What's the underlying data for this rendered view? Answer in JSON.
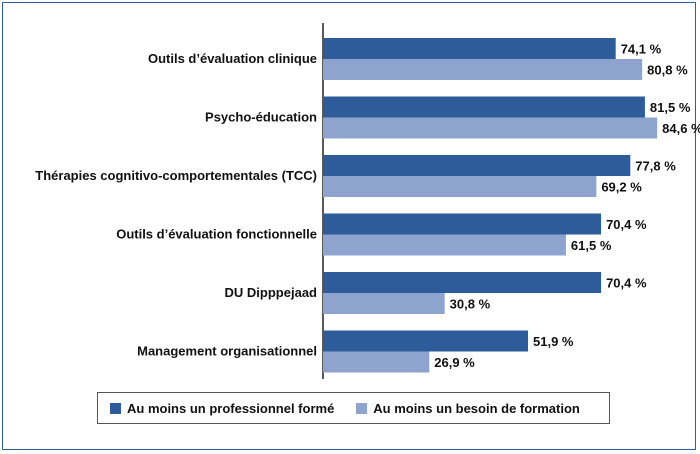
{
  "chart_data": {
    "type": "bar",
    "orientation": "horizontal",
    "title": "",
    "xlabel": "",
    "ylabel": "",
    "xlim": [
      0,
      100
    ],
    "grid": false,
    "legend_position": "bottom",
    "categories": [
      "Outils d’évaluation clinique",
      "Psycho-éducation",
      "Thérapies cognitivo-comportementales (TCC)",
      "Outils d’évaluation fonctionnelle",
      "DU Dipppejaad",
      "Management organisationnel"
    ],
    "series": [
      {
        "name": "Au moins un professionnel formé",
        "color": "#2e5c9a",
        "values": [
          74.1,
          81.5,
          77.8,
          70.4,
          70.4,
          51.9
        ],
        "labels": [
          "74,1 %",
          "81,5 %",
          "77,8 %",
          "70,4 %",
          "70,4 %",
          "51,9 %"
        ]
      },
      {
        "name": "Au moins un besoin de formation",
        "color": "#8fa3cf",
        "values": [
          80.8,
          84.6,
          69.2,
          61.5,
          30.8,
          26.9
        ],
        "labels": [
          "80,8 %",
          "84,6 %",
          "69,2 %",
          "61,5 %",
          "30,8 %",
          "26,9 %"
        ]
      }
    ]
  }
}
